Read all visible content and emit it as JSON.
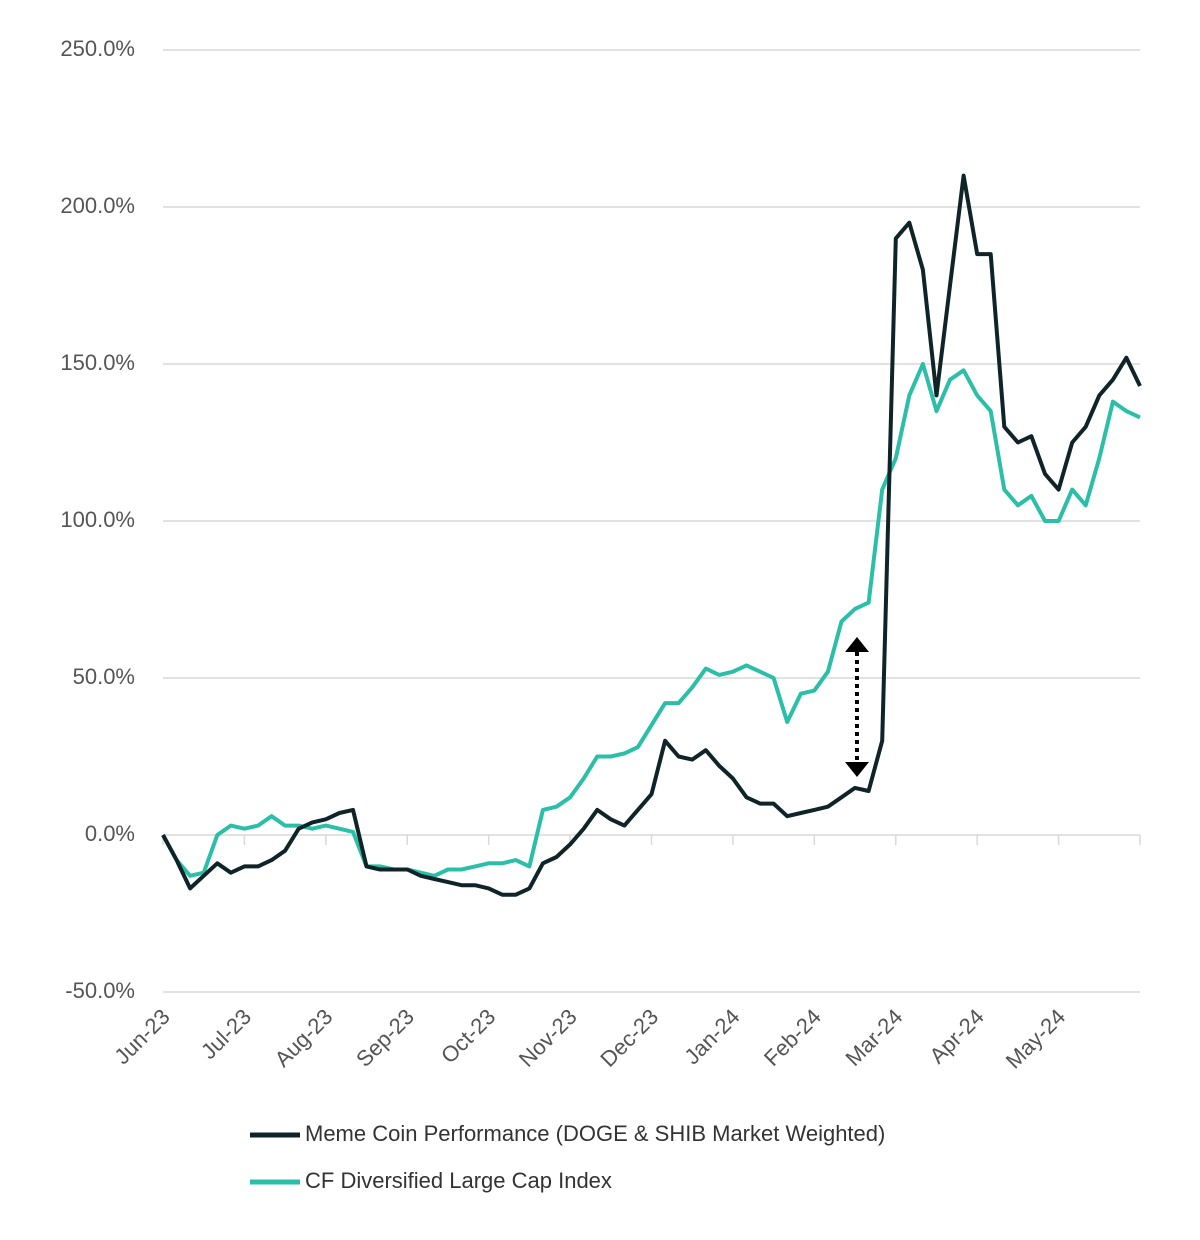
{
  "chart_data": {
    "type": "line",
    "categories": [
      "Jun-23",
      null,
      null,
      null,
      null,
      null,
      "Jul-23",
      null,
      null,
      null,
      null,
      null,
      "Aug-23",
      null,
      null,
      null,
      null,
      null,
      "Sep-23",
      null,
      null,
      null,
      null,
      null,
      "Oct-23",
      null,
      null,
      null,
      null,
      null,
      "Nov-23",
      null,
      null,
      null,
      null,
      null,
      "Dec-23",
      null,
      null,
      null,
      null,
      null,
      "Jan-24",
      null,
      null,
      null,
      null,
      null,
      "Feb-24",
      null,
      null,
      null,
      null,
      null,
      "Mar-24",
      null,
      null,
      null,
      null,
      null,
      "Apr-24",
      null,
      null,
      null,
      null,
      null,
      "May-24",
      null,
      null,
      null,
      null,
      null,
      null
    ],
    "series": [
      {
        "name": "Meme Coin Performance (DOGE & SHIB Market Weighted)",
        "color": "#0f2429",
        "values": [
          0,
          -8,
          -17,
          -13,
          -9,
          -12,
          -10,
          -10,
          -8,
          -5,
          2,
          4,
          5,
          7,
          8,
          -10,
          -11,
          -11,
          -11,
          -13,
          -14,
          -15,
          -16,
          -16,
          -17,
          -19,
          -19,
          -17,
          -9,
          -7,
          -3,
          2,
          8,
          5,
          3,
          8,
          13,
          30,
          25,
          24,
          27,
          22,
          18,
          12,
          10,
          10,
          6,
          7,
          8,
          9,
          12,
          15,
          14,
          30,
          190,
          195,
          180,
          140,
          175,
          210,
          185,
          185,
          130,
          125,
          127,
          115,
          110,
          125,
          130,
          140,
          145,
          152,
          143
        ]
      },
      {
        "name": "CF Diversified Large Cap Index",
        "color": "#2bbfa8",
        "values": [
          0,
          -8,
          -13,
          -12,
          0,
          3,
          2,
          3,
          6,
          3,
          3,
          2,
          3,
          2,
          1,
          -10,
          -10,
          -11,
          -11,
          -12,
          -13,
          -11,
          -11,
          -10,
          -9,
          -9,
          -8,
          -10,
          8,
          9,
          12,
          18,
          25,
          25,
          26,
          28,
          35,
          42,
          42,
          47,
          53,
          51,
          52,
          54,
          52,
          50,
          36,
          45,
          46,
          52,
          68,
          72,
          74,
          110,
          120,
          140,
          150,
          135,
          145,
          148,
          140,
          135,
          110,
          105,
          108,
          100,
          100,
          110,
          105,
          120,
          138,
          135,
          133
        ]
      }
    ],
    "ylim": [
      -50,
      250
    ],
    "yticks": [
      {
        "value": -50,
        "label": "-50.0%"
      },
      {
        "value": 0,
        "label": "0.0%"
      },
      {
        "value": 50,
        "label": "50.0%"
      },
      {
        "value": 100,
        "label": "100.0%"
      },
      {
        "value": 150,
        "label": "150.0%"
      },
      {
        "value": 200,
        "label": "200.0%"
      },
      {
        "value": 250,
        "label": "250.0%"
      }
    ],
    "grid": true
  }
}
